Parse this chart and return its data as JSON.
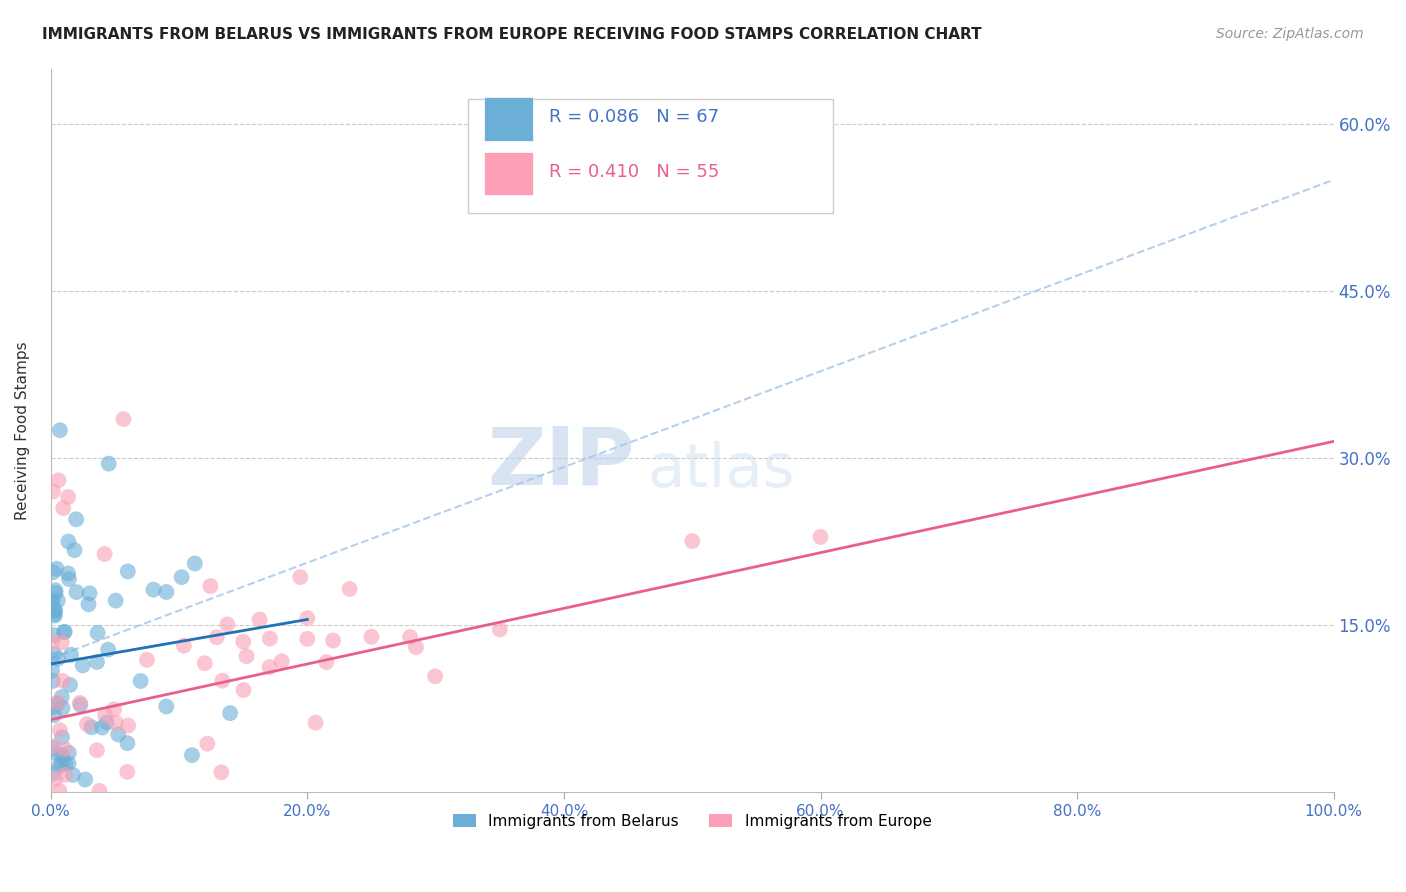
{
  "title": "IMMIGRANTS FROM BELARUS VS IMMIGRANTS FROM EUROPE RECEIVING FOOD STAMPS CORRELATION CHART",
  "source": "Source: ZipAtlas.com",
  "ylabel": "Receiving Food Stamps",
  "legend_belarus": "Immigrants from Belarus",
  "legend_europe": "Immigrants from Europe",
  "r_belarus": 0.086,
  "n_belarus": 67,
  "r_europe": 0.41,
  "n_europe": 55,
  "color_belarus": "#6baed6",
  "color_europe": "#fa9fb5",
  "color_trendline_belarus": "#2171b5",
  "color_trendline_europe": "#e8608a",
  "color_axis_labels": "#4472c4",
  "background_color": "#ffffff",
  "xlim": [
    0.0,
    1.0
  ],
  "ylim": [
    0.0,
    0.65
  ],
  "xtick_labels": [
    "0.0%",
    "20.0%",
    "40.0%",
    "60.0%",
    "80.0%",
    "100.0%"
  ],
  "xtick_values": [
    0.0,
    0.2,
    0.4,
    0.6,
    0.8,
    1.0
  ],
  "ytick_labels": [
    "15.0%",
    "30.0%",
    "45.0%",
    "60.0%"
  ],
  "ytick_values": [
    0.15,
    0.3,
    0.45,
    0.6
  ],
  "watermark_zip": "ZIP",
  "watermark_atlas": "atlas",
  "trendline_dashed_x0": 0.0,
  "trendline_dashed_x1": 1.0,
  "trendline_dashed_y0": 0.12,
  "trendline_dashed_y1": 0.55,
  "trendline_blue_x0": 0.0,
  "trendline_blue_x1": 0.2,
  "trendline_blue_y0": 0.115,
  "trendline_blue_y1": 0.155,
  "trendline_pink_x0": 0.0,
  "trendline_pink_x1": 1.0,
  "trendline_pink_y0": 0.065,
  "trendline_pink_y1": 0.315
}
